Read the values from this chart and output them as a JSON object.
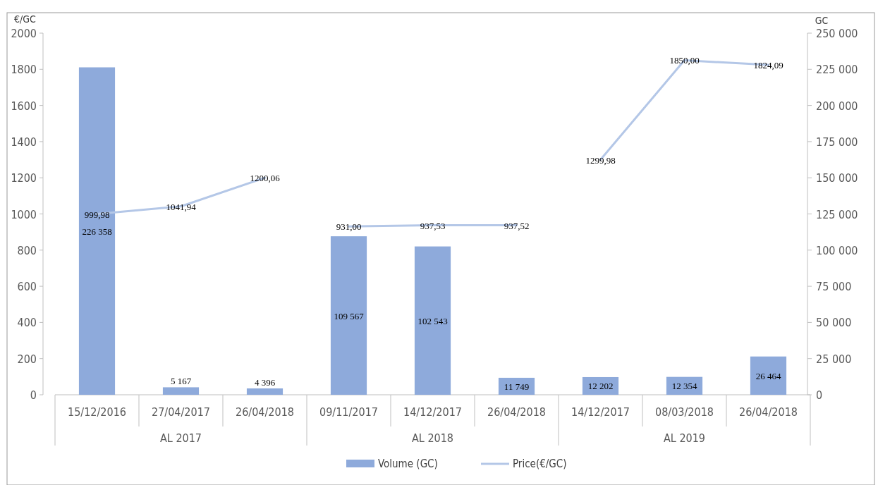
{
  "chart_data": {
    "type": "bar",
    "ylabel": "€/GC",
    "y2label": "GC",
    "categories": [
      "15/12/2016",
      "27/04/2017",
      "26/04/2018",
      "09/11/2017",
      "14/12/2017",
      "26/04/2018",
      "14/12/2017",
      "08/03/2018",
      "26/04/2018"
    ],
    "annotations": [
      "AL 2017",
      "AL 2018",
      "AL 2019"
    ],
    "series": [
      {
        "name": "Volume (GC)",
        "axis": "y2",
        "color": "#8eaadb",
        "values": [
          226358,
          5167,
          4396,
          109567,
          102543,
          11749,
          12202,
          12354,
          26464
        ],
        "value_labels": [
          "226 358",
          "5 167",
          "4 396",
          "109 567",
          "102 543",
          "11 749",
          "12 202",
          "12 354",
          "26 464"
        ]
      },
      {
        "name": "Price(€/GC)",
        "type": "line",
        "color": "#b4c7e7",
        "values": [
          999.98,
          1041.94,
          1200.06,
          null,
          null,
          null,
          null,
          null,
          null
        ],
        "value_labels": [
          "999,98",
          "1041,94",
          "1200,06",
          null,
          null,
          null,
          null,
          null,
          null
        ]
      },
      {
        "type": "line",
        "color": "#b4c7e7",
        "values": [
          null,
          null,
          null,
          931.0,
          937.53,
          937.52,
          null,
          null,
          null
        ],
        "value_labels": [
          null,
          null,
          null,
          "931,00",
          "937,53",
          "937,52",
          null,
          null,
          null
        ]
      },
      {
        "type": "line",
        "color": "#b4c7e7",
        "values": [
          null,
          null,
          null,
          null,
          null,
          null,
          1299.98,
          1850.0,
          1824.09
        ],
        "value_labels": [
          null,
          null,
          null,
          null,
          null,
          null,
          "1299,98",
          "1850,00",
          "1824,09"
        ]
      }
    ],
    "ylim": [
      0,
      2000
    ],
    "yticks": [
      0,
      200,
      400,
      600,
      800,
      1000,
      1200,
      1400,
      1600,
      1800,
      2000
    ],
    "y2lim": [
      0,
      250000
    ],
    "y2ticks": [
      0,
      {
        "value": 25000,
        "label": "25 000"
      },
      {
        "value": 50000,
        "label": "50 000"
      },
      {
        "value": 75000,
        "label": "75 000"
      },
      {
        "value": 100000,
        "label": "100 000"
      },
      {
        "value": 125000,
        "label": "125 000"
      },
      {
        "value": 150000,
        "label": "150 000"
      },
      {
        "value": 175000,
        "label": "175 000"
      },
      {
        "value": 200000,
        "label": "200 000"
      },
      {
        "value": 225000,
        "label": "225 000"
      },
      {
        "value": 250000,
        "label": "250 000"
      }
    ],
    "legend": "bottom",
    "marker": "none",
    "line_style": "solid"
  }
}
